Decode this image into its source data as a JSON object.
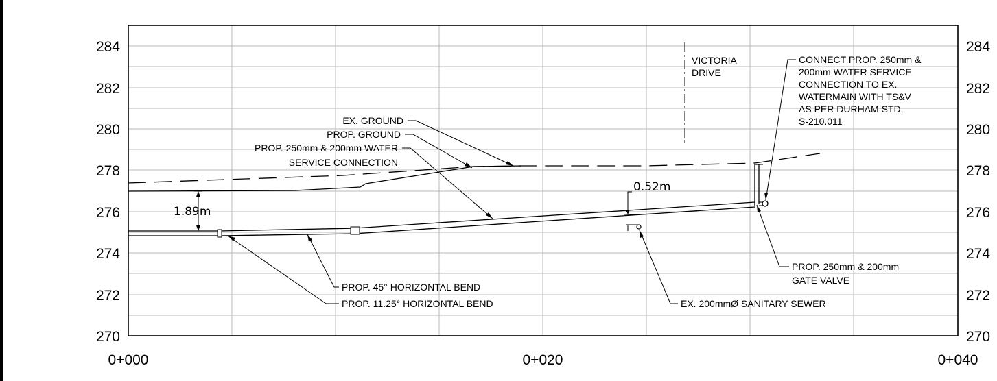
{
  "y_axis": {
    "labels_left": [
      "284",
      "282",
      "280",
      "278",
      "276",
      "274",
      "272",
      "270"
    ],
    "labels_right": [
      "284",
      "282",
      "280",
      "278",
      "276",
      "274",
      "272",
      "270"
    ]
  },
  "x_axis": {
    "labels": [
      "0+000",
      "0+020",
      "0+040"
    ]
  },
  "labels": {
    "victoria_line1": "VICTORIA",
    "victoria_line2": "DRIVE",
    "connect_1": "CONNECT PROP. 250mm &",
    "connect_2": "200mm WATER SERVICE",
    "connect_3": "CONNECTION TO EX.",
    "connect_4": "WATERMAIN WITH TS&V",
    "connect_5": "AS PER DURHAM STD.",
    "connect_6": "S-210.011",
    "ex_ground": "EX. GROUND",
    "prop_ground": "PROP. GROUND",
    "water_1": "PROP. 250mm & 200mm WATER",
    "water_2": "SERVICE CONNECTION",
    "dim_052": "0.52m",
    "dim_189": "1.89m",
    "gate_1": "PROP. 250mm & 200mm",
    "gate_2": "GATE VALVE",
    "bend45": "PROP. 45° HORIZONTAL BEND",
    "bend1125": "PROP. 11.25° HORIZONTAL BEND",
    "sewer": "EX. 200mmØ SANITARY SEWER"
  }
}
